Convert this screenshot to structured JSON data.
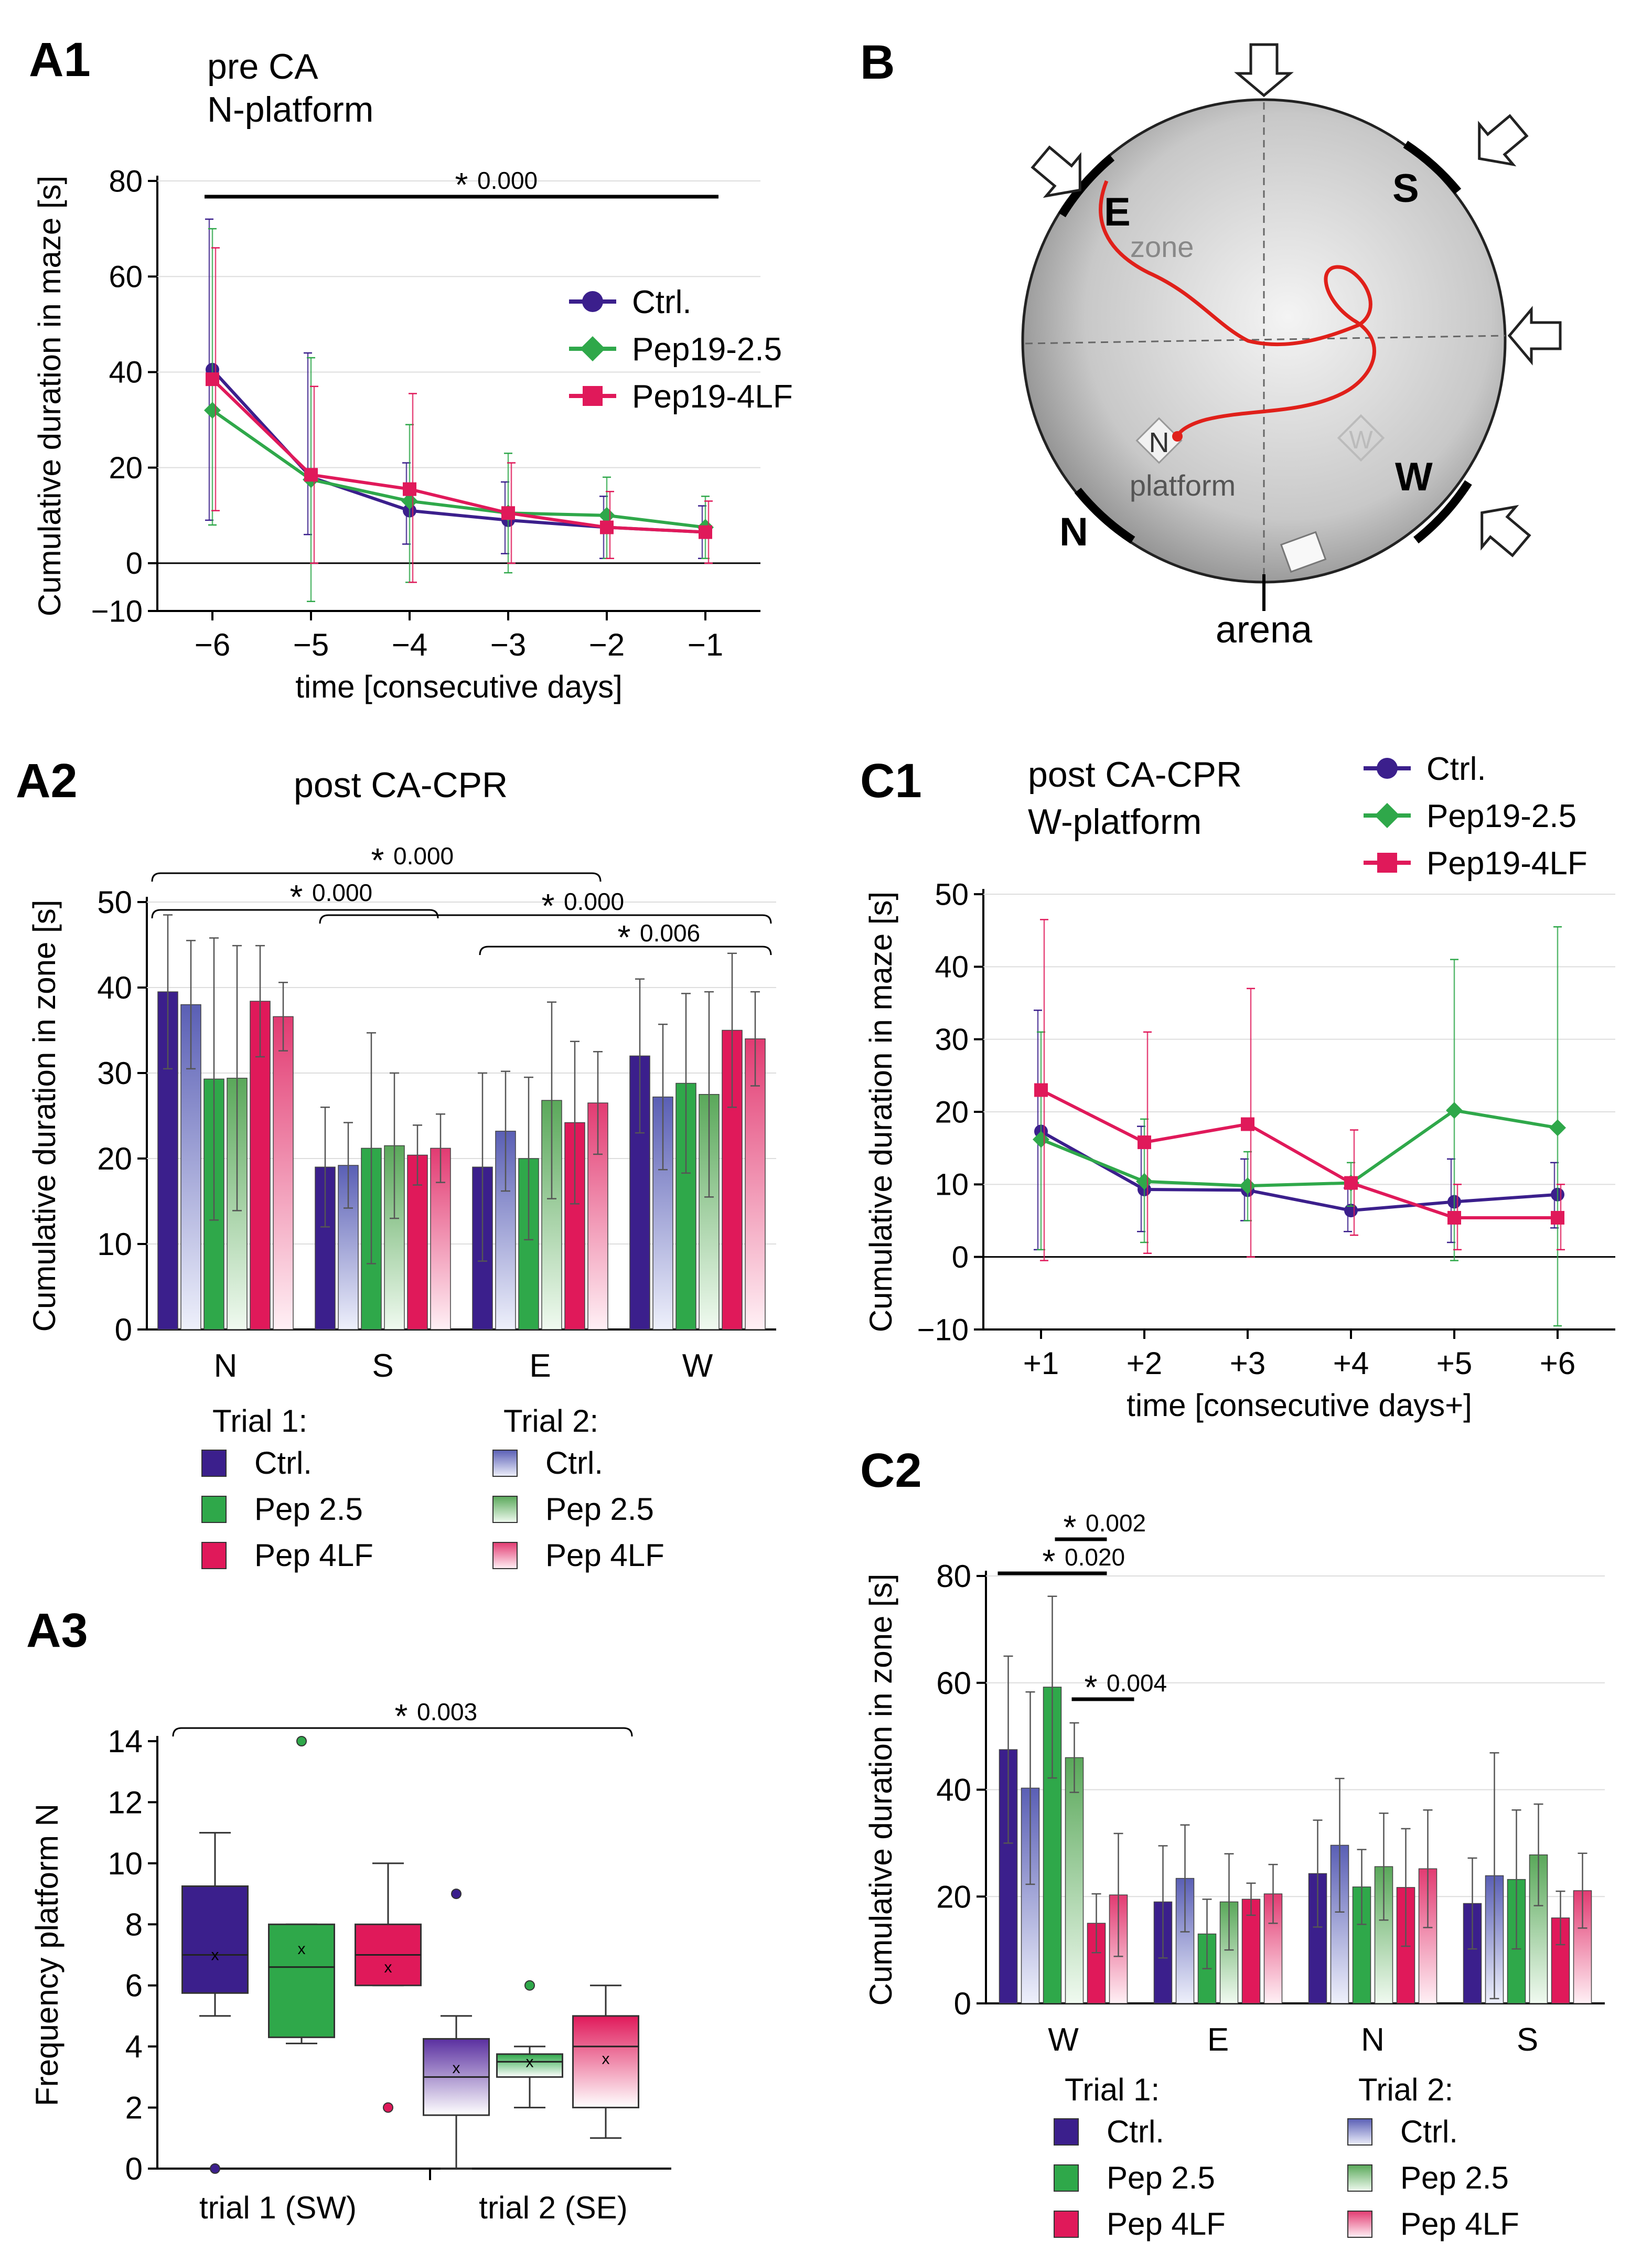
{
  "colors": {
    "ctrl": "#3b1f8c",
    "pep25": "#2fa84a",
    "pep4lf": "#e0195a",
    "ctrl_light": "#9fa3d8",
    "pep25_light": "#a7d9a7",
    "pep4lf_light": "#f3a3bd",
    "axis": "#000000",
    "grid": "#dddddd"
  },
  "panels": {
    "A1": {
      "label": "A1",
      "title_line1": "pre CA",
      "title_line2": "N-platform"
    },
    "A2": {
      "label": "A2",
      "title": "post CA-CPR"
    },
    "A3": {
      "label": "A3"
    },
    "B": {
      "label": "B",
      "zone": "zone",
      "platform_N": "N",
      "platform_word": "platform",
      "platform_W": "W",
      "dir_E": "E",
      "dir_S": "S",
      "dir_N": "N",
      "dir_W": "W",
      "arena": "arena"
    },
    "C1": {
      "label": "C1",
      "title_line1": "post CA-CPR",
      "title_line2": "W-platform"
    },
    "C2": {
      "label": "C2"
    }
  },
  "legends": {
    "line": [
      "Ctrl.",
      "Pep19-2.5",
      "Pep19-4LF"
    ],
    "trial1_header": "Trial 1:",
    "trial2_header": "Trial 2:",
    "bars": [
      "Ctrl.",
      "Pep 2.5",
      "Pep 4LF"
    ]
  },
  "chart_data": [
    {
      "id": "A1",
      "type": "line",
      "title": "pre CA N-platform",
      "xlabel": "time [consecutive days]",
      "ylabel": "Cumulative duration in maze [s]",
      "x": [
        "−6",
        "−5",
        "−4",
        "−3",
        "−2",
        "−1"
      ],
      "ylim": [
        -10,
        80
      ],
      "yticks": [
        "−10",
        "0",
        "20",
        "40",
        "60",
        "80"
      ],
      "series": [
        {
          "name": "Ctrl.",
          "values": [
            40.5,
            18,
            11,
            9,
            7.5,
            6.5
          ],
          "err_hi": [
            72,
            44,
            21,
            17,
            14,
            12
          ],
          "err_lo": [
            9,
            6,
            4,
            2,
            1,
            1
          ]
        },
        {
          "name": "Pep19-2.5",
          "values": [
            32,
            17.5,
            13,
            10.5,
            10,
            7.5
          ],
          "err_hi": [
            70,
            43,
            29,
            23,
            18,
            14
          ],
          "err_lo": [
            8,
            -8,
            -4,
            -2,
            1,
            1
          ]
        },
        {
          "name": "Pep19-4LF",
          "values": [
            38.5,
            18.5,
            15.5,
            10.5,
            7.5,
            6.5
          ],
          "err_hi": [
            66,
            37,
            35.5,
            21,
            15,
            13
          ],
          "err_lo": [
            11,
            0,
            -4,
            0,
            1,
            0
          ]
        }
      ],
      "annotation": {
        "star": "*",
        "p": "0.000"
      }
    },
    {
      "id": "A2",
      "type": "bar",
      "title": "post CA-CPR",
      "ylabel": "Cumulative duration in zone [s]",
      "categories": [
        "N",
        "S",
        "E",
        "W"
      ],
      "ylim": [
        0,
        50
      ],
      "yticks": [
        "0",
        "10",
        "20",
        "30",
        "40",
        "50"
      ],
      "series": [
        {
          "name": "Trial 1 Ctrl.",
          "values": [
            39.5,
            19,
            19,
            32
          ],
          "err": [
            9,
            7,
            11,
            9
          ]
        },
        {
          "name": "Trial 2 Ctrl.",
          "values": [
            38,
            19.2,
            23.2,
            27.2
          ],
          "err": [
            7.5,
            5,
            7,
            8.5
          ]
        },
        {
          "name": "Trial 1 Pep 2.5",
          "values": [
            29.3,
            21.2,
            20,
            28.8
          ],
          "err": [
            16.5,
            13.5,
            9.5,
            10.5
          ]
        },
        {
          "name": "Trial 2 Pep 2.5",
          "values": [
            29.4,
            21.5,
            26.8,
            27.5
          ],
          "err": [
            15.5,
            8.5,
            11.5,
            12
          ]
        },
        {
          "name": "Trial 1 Pep 4LF",
          "values": [
            38.4,
            20.4,
            24.2,
            35
          ],
          "err": [
            6.5,
            3.5,
            9.5,
            9
          ]
        },
        {
          "name": "Trial 2 Pep 4LF",
          "values": [
            36.6,
            21.2,
            26.5,
            34
          ],
          "err": [
            4,
            4,
            6,
            5.5
          ]
        }
      ],
      "annotations": [
        {
          "star": "*",
          "p": "0.000"
        },
        {
          "star": "*",
          "p": "0.000"
        },
        {
          "star": "*",
          "p": "0.000"
        },
        {
          "star": "*",
          "p": "0.006"
        }
      ]
    },
    {
      "id": "A3",
      "type": "box",
      "ylabel": "Frequency platform N",
      "categories": [
        "trial 1 (SW)",
        "trial 2 (SE)"
      ],
      "ylim": [
        0,
        14
      ],
      "yticks": [
        "0",
        "2",
        "4",
        "6",
        "8",
        "10",
        "12",
        "14"
      ],
      "boxes": [
        {
          "group": "trial 1 (SW)",
          "name": "Ctrl.",
          "min": 5,
          "q1": 5.75,
          "median": 7,
          "mean": 7,
          "q3": 9.25,
          "max": 11,
          "outliers": [
            0
          ]
        },
        {
          "group": "trial 1 (SW)",
          "name": "Pep 2.5",
          "min": 4.1,
          "q1": 4.3,
          "median": 6.6,
          "mean": 7.2,
          "q3": 8,
          "max": 8,
          "outliers": [
            14
          ]
        },
        {
          "group": "trial 1 (SW)",
          "name": "Pep 4LF",
          "min": 6,
          "q1": 6,
          "median": 7,
          "mean": 6.6,
          "q3": 8,
          "max": 10,
          "outliers": [
            2
          ]
        },
        {
          "group": "trial 2 (SE)",
          "name": "Ctrl.",
          "min": 0,
          "q1": 1.75,
          "median": 3,
          "mean": 3.3,
          "q3": 4.25,
          "max": 5,
          "outliers": [
            9
          ]
        },
        {
          "group": "trial 2 (SE)",
          "name": "Pep 2.5",
          "min": 2,
          "q1": 3,
          "median": 3.5,
          "mean": 3.5,
          "q3": 3.75,
          "max": 4,
          "outliers": [
            6
          ]
        },
        {
          "group": "trial 2 (SE)",
          "name": "Pep 4LF",
          "min": 1,
          "q1": 2,
          "median": 4,
          "mean": 3.6,
          "q3": 5,
          "max": 6,
          "outliers": []
        }
      ],
      "annotation": {
        "star": "*",
        "p": "0.003"
      }
    },
    {
      "id": "C1",
      "type": "line",
      "title": "post CA-CPR W-platform",
      "xlabel": "time [consecutive days+]",
      "ylabel": "Cumulative duration in maze [s]",
      "x": [
        "+1",
        "+2",
        "+3",
        "+4",
        "+5",
        "+6"
      ],
      "ylim": [
        -10,
        50
      ],
      "yticks": [
        "−10",
        "0",
        "10",
        "20",
        "30",
        "40",
        "50"
      ],
      "series": [
        {
          "name": "Ctrl.",
          "values": [
            17.3,
            9.3,
            9.2,
            6.4,
            7.6,
            8.6
          ],
          "err_hi": [
            34,
            18,
            13.5,
            9.5,
            13.5,
            13
          ],
          "err_lo": [
            1,
            3.5,
            5,
            3.5,
            2,
            4
          ]
        },
        {
          "name": "Pep19-2.5",
          "values": [
            16.2,
            10.4,
            9.8,
            10.2,
            20.2,
            17.8
          ],
          "err_hi": [
            31,
            19,
            14.5,
            13,
            41,
            45.5
          ],
          "err_lo": [
            1,
            2,
            5,
            7,
            -0.5,
            -9.5
          ]
        },
        {
          "name": "Pep19-4LF",
          "values": [
            23,
            15.8,
            18.3,
            10.2,
            5.4,
            5.4
          ],
          "err_hi": [
            46.5,
            31,
            37,
            17.5,
            10,
            10
          ],
          "err_lo": [
            -0.5,
            0.5,
            0,
            3,
            1,
            1
          ]
        }
      ]
    },
    {
      "id": "C2",
      "type": "bar",
      "ylabel": "Cumulative duration in zone [s]",
      "categories": [
        "W",
        "E",
        "N",
        "S"
      ],
      "ylim": [
        0,
        80
      ],
      "yticks": [
        "0",
        "20",
        "40",
        "60",
        "80"
      ],
      "series": [
        {
          "name": "Trial 1 Ctrl.",
          "values": [
            47.5,
            19,
            24.3,
            18.7
          ],
          "err": [
            17.5,
            10.5,
            10,
            8.5
          ]
        },
        {
          "name": "Trial 2 Ctrl.",
          "values": [
            40.3,
            23.4,
            29.6,
            23.9
          ],
          "err": [
            18,
            10,
            12.5,
            23
          ]
        },
        {
          "name": "Trial 1 Pep 2.5",
          "values": [
            59.2,
            13,
            21.8,
            23.2
          ],
          "err": [
            17,
            6.5,
            7,
            13
          ]
        },
        {
          "name": "Trial 2 Pep 2.5",
          "values": [
            46,
            19,
            25.6,
            27.8
          ],
          "err": [
            6.5,
            9,
            10,
            9.5
          ]
        },
        {
          "name": "Trial 1 Pep 4LF",
          "values": [
            15,
            19.5,
            21.7,
            16
          ],
          "err": [
            5.5,
            3,
            11,
            5
          ]
        },
        {
          "name": "Trial 2 Pep 4LF",
          "values": [
            20.3,
            20.5,
            25.2,
            21.1
          ],
          "err": [
            11.5,
            5.5,
            11,
            7
          ]
        }
      ],
      "annotations": [
        {
          "star": "*",
          "p": "0.002"
        },
        {
          "star": "*",
          "p": "0.020"
        },
        {
          "star": "*",
          "p": "0.004"
        }
      ]
    }
  ]
}
